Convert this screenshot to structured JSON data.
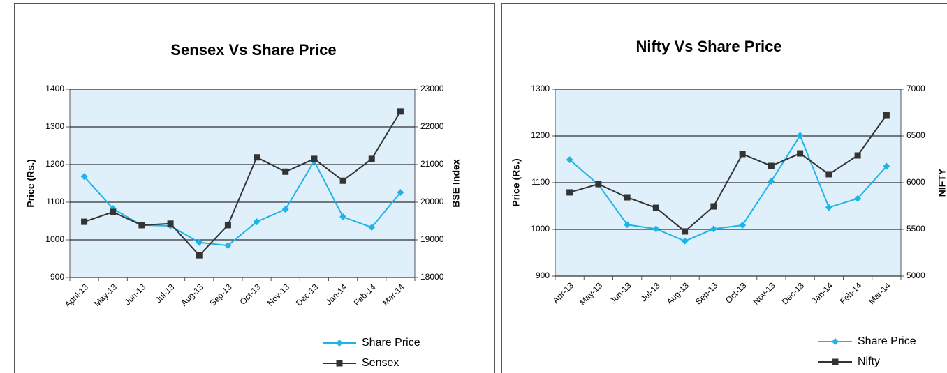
{
  "chart_data": [
    {
      "type": "line",
      "title": "Sensex Vs Share Price",
      "ylabel": "Price (Rs.)",
      "y2label": "BSE Index",
      "categories": [
        "April-13",
        "May-13",
        "Jun-13",
        "Jul-13",
        "Aug-13",
        "Sep-13",
        "Oct-13",
        "Nov-13",
        "Dec-13",
        "Jan-14",
        "Feb-14",
        "Mar-14"
      ],
      "ylim": [
        900,
        1400
      ],
      "yticks": [
        900,
        1000,
        1100,
        1200,
        1300,
        1400
      ],
      "y2lim": [
        18000,
        23000
      ],
      "y2ticks": [
        18000,
        19000,
        20000,
        21000,
        22000,
        23000
      ],
      "grid": true,
      "series": [
        {
          "name": "Share Price",
          "color": "#1fb4e8",
          "marker": "diamond",
          "values": [
            1168,
            1083,
            1039,
            1037,
            993,
            985,
            1048,
            1081,
            1209,
            1061,
            1033,
            1126
          ]
        },
        {
          "name": "Sensex",
          "color": "#333333",
          "marker": "square",
          "axis": "y2",
          "values": [
            19480,
            19740,
            19390,
            19430,
            18590,
            19390,
            21190,
            20810,
            21150,
            20570,
            21150,
            22410
          ]
        }
      ]
    },
    {
      "type": "line",
      "title": "Nifty Vs Share Price",
      "ylabel": "Price (Rs.)",
      "y2label": "NIFTY",
      "categories": [
        "Apr-13",
        "May-13",
        "Jun-13",
        "Jul-13",
        "Aug-13",
        "Sep-13",
        "Oct-13",
        "Nov-13",
        "Dec-13",
        "Jan-14",
        "Feb-14",
        "Mar-14"
      ],
      "ylim": [
        900,
        1300
      ],
      "yticks": [
        900,
        1000,
        1100,
        1200,
        1300
      ],
      "y2lim": [
        5000,
        7000
      ],
      "y2ticks": [
        5000,
        5500,
        6000,
        6500,
        7000
      ],
      "grid": true,
      "series": [
        {
          "name": "Share Price",
          "color": "#1fb4e8",
          "marker": "diamond",
          "values": [
            1149,
            1096,
            1010,
            1001,
            975,
            1001,
            1009,
            1103,
            1201,
            1047,
            1066,
            1135
          ]
        },
        {
          "name": "Nifty",
          "color": "#333333",
          "marker": "square",
          "axis": "y2",
          "values": [
            5896,
            5985,
            5843,
            5731,
            5478,
            5746,
            6306,
            6179,
            6313,
            6090,
            6291,
            6724
          ]
        }
      ]
    }
  ]
}
